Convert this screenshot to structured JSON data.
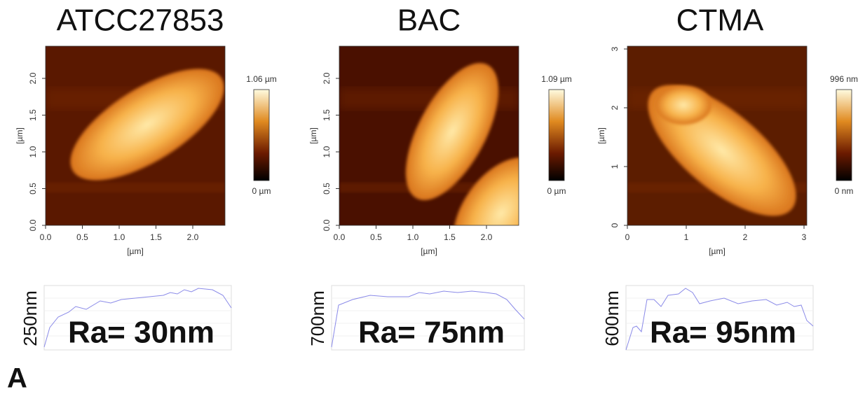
{
  "panels": [
    {
      "title": "ATCC27853",
      "y_axis_label": "[µm]",
      "x_axis_label": "[µm]",
      "x_ticks": [
        "0.0",
        "0.5",
        "1.0",
        "1.5",
        "2.0"
      ],
      "y_ticks": [
        "0.0",
        "0.5",
        "1.0",
        "1.5",
        "2.0"
      ],
      "colorbar": {
        "max": "1.06 µm",
        "min": "0 µm"
      },
      "profile": {
        "axis_label": "250nm",
        "roughness": "Ra= 30nm"
      }
    },
    {
      "title": "BAC",
      "y_axis_label": "[µm]",
      "x_axis_label": "[µm]",
      "x_ticks": [
        "0.0",
        "0.5",
        "1.0",
        "1.5",
        "2.0"
      ],
      "y_ticks": [
        "0.0",
        "0.5",
        "1.0",
        "1.5",
        "2.0"
      ],
      "colorbar": {
        "max": "1.09 µm",
        "min": "0 µm"
      },
      "profile": {
        "axis_label": "700nm",
        "roughness": "Ra= 75nm"
      }
    },
    {
      "title": "CTMA",
      "y_axis_label": "[µm]",
      "x_axis_label": "[µm]",
      "x_ticks": [
        "0",
        "1",
        "2",
        "3"
      ],
      "y_ticks": [
        "0",
        "1",
        "2",
        "3"
      ],
      "colorbar": {
        "max": "996 nm",
        "min": "0 nm"
      },
      "profile": {
        "axis_label": "600nm",
        "roughness": "Ra= 95nm"
      }
    }
  ],
  "panel_label": "A"
}
